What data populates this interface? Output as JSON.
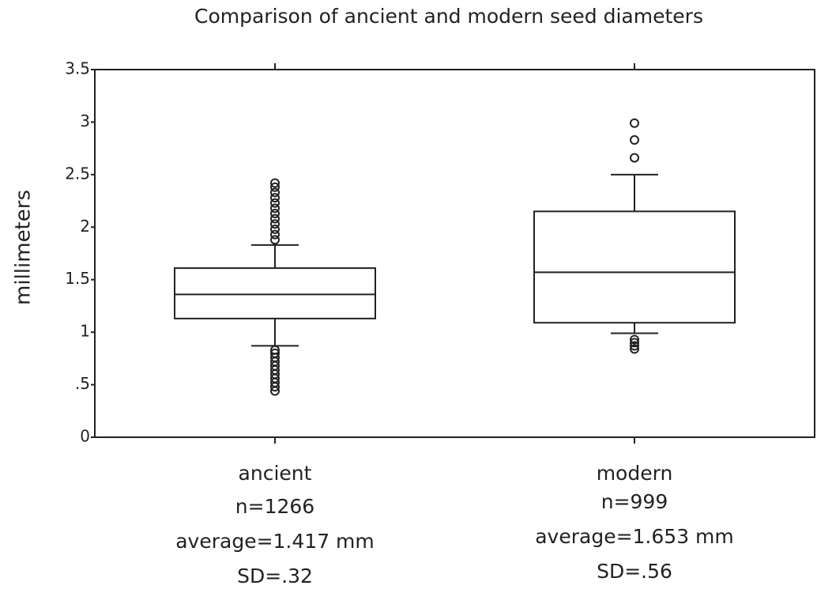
{
  "chart_data": {
    "type": "box",
    "title": "Comparison of ancient and modern seed diameters",
    "ylabel": "millimeters",
    "categories": [
      "ancient",
      "modern"
    ],
    "annotations": [
      [
        "n=1266",
        "average=1.417 mm",
        "SD=.32"
      ],
      [
        "n=999",
        "average=1.653 mm",
        "SD=.56"
      ]
    ],
    "boxes": [
      {
        "whisker_low": 0.87,
        "q1": 1.13,
        "median": 1.36,
        "q3": 1.61,
        "whisker_high": 1.83,
        "outliers": [
          0.44,
          0.48,
          0.52,
          0.56,
          0.6,
          0.64,
          0.68,
          0.72,
          0.76,
          0.8,
          0.83,
          1.88,
          1.93,
          1.98,
          2.03,
          2.08,
          2.13,
          2.18,
          2.23,
          2.28,
          2.33,
          2.38,
          2.42
        ]
      },
      {
        "whisker_low": 0.99,
        "q1": 1.09,
        "median": 1.57,
        "q3": 2.15,
        "whisker_high": 2.5,
        "outliers": [
          0.84,
          0.87,
          0.9,
          0.93,
          2.66,
          2.83,
          2.99
        ]
      }
    ],
    "color": "#222222",
    "ylim": [
      0,
      3.5
    ],
    "yticks": [
      0,
      {
        "value": 0.5,
        "label": ".5"
      },
      1,
      1.5,
      2,
      2.5,
      3,
      3.5
    ]
  }
}
